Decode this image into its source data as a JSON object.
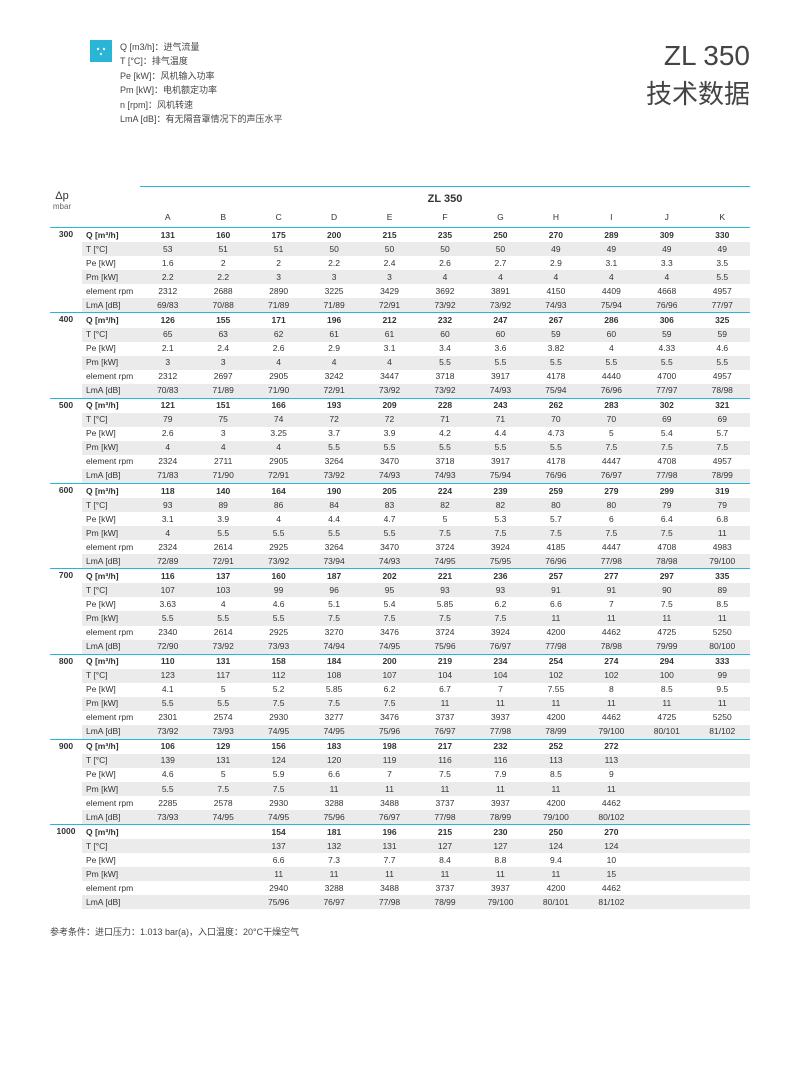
{
  "title_line1": "ZL 350",
  "title_line2": "技术数据",
  "legend": [
    "Q [m3/h]：进气流量",
    "T [°C]：排气温度",
    "Pe [kW]：风机输入功率",
    "Pm [kW]：电机额定功率",
    "n [rpm]：风机转速",
    "LmA [dB]：有无隔音罩情况下的声压水平"
  ],
  "corner": {
    "top": "Δp",
    "bottom": "mbar"
  },
  "model_header": "ZL 350",
  "col_letters": [
    "A",
    "B",
    "C",
    "D",
    "E",
    "F",
    "G",
    "H",
    "I",
    "J",
    "K"
  ],
  "param_labels": [
    "Q [m³/h]",
    "T [°C]",
    "Pe [kW]",
    "Pm [kW]",
    "element rpm",
    "LmA [dB]"
  ],
  "footnote": "参考条件：进口压力：1.013 bar(a)，入口温度：20°C干燥空气",
  "blocks": [
    {
      "mbar": "300",
      "rows": [
        [
          "131",
          "160",
          "175",
          "200",
          "215",
          "235",
          "250",
          "270",
          "289",
          "309",
          "330"
        ],
        [
          "53",
          "51",
          "51",
          "50",
          "50",
          "50",
          "50",
          "49",
          "49",
          "49",
          "49"
        ],
        [
          "1.6",
          "2",
          "2",
          "2.2",
          "2.4",
          "2.6",
          "2.7",
          "2.9",
          "3.1",
          "3.3",
          "3.5"
        ],
        [
          "2.2",
          "2.2",
          "3",
          "3",
          "3",
          "4",
          "4",
          "4",
          "4",
          "4",
          "5.5"
        ],
        [
          "2312",
          "2688",
          "2890",
          "3225",
          "3429",
          "3692",
          "3891",
          "4150",
          "4409",
          "4668",
          "4957"
        ],
        [
          "69/83",
          "70/88",
          "71/89",
          "71/89",
          "72/91",
          "73/92",
          "73/92",
          "74/93",
          "75/94",
          "76/96",
          "77/97"
        ]
      ]
    },
    {
      "mbar": "400",
      "rows": [
        [
          "126",
          "155",
          "171",
          "196",
          "212",
          "232",
          "247",
          "267",
          "286",
          "306",
          "325"
        ],
        [
          "65",
          "63",
          "62",
          "61",
          "61",
          "60",
          "60",
          "59",
          "60",
          "59",
          "59"
        ],
        [
          "2.1",
          "2.4",
          "2.6",
          "2.9",
          "3.1",
          "3.4",
          "3.6",
          "3.82",
          "4",
          "4.33",
          "4.6"
        ],
        [
          "3",
          "3",
          "4",
          "4",
          "4",
          "5.5",
          "5.5",
          "5.5",
          "5.5",
          "5.5",
          "5.5"
        ],
        [
          "2312",
          "2697",
          "2905",
          "3242",
          "3447",
          "3718",
          "3917",
          "4178",
          "4440",
          "4700",
          "4957"
        ],
        [
          "70/83",
          "71/89",
          "71/90",
          "72/91",
          "73/92",
          "73/92",
          "74/93",
          "75/94",
          "76/96",
          "77/97",
          "78/98"
        ]
      ]
    },
    {
      "mbar": "500",
      "rows": [
        [
          "121",
          "151",
          "166",
          "193",
          "209",
          "228",
          "243",
          "262",
          "283",
          "302",
          "321"
        ],
        [
          "79",
          "75",
          "74",
          "72",
          "72",
          "71",
          "71",
          "70",
          "70",
          "69",
          "69"
        ],
        [
          "2.6",
          "3",
          "3.25",
          "3.7",
          "3.9",
          "4.2",
          "4.4",
          "4.73",
          "5",
          "5.4",
          "5.7"
        ],
        [
          "4",
          "4",
          "4",
          "5.5",
          "5.5",
          "5.5",
          "5.5",
          "5.5",
          "7.5",
          "7.5",
          "7.5"
        ],
        [
          "2324",
          "2711",
          "2905",
          "3264",
          "3470",
          "3718",
          "3917",
          "4178",
          "4447",
          "4708",
          "4957"
        ],
        [
          "71/83",
          "71/90",
          "72/91",
          "73/92",
          "74/93",
          "74/93",
          "75/94",
          "76/96",
          "76/97",
          "77/98",
          "78/99"
        ]
      ]
    },
    {
      "mbar": "600",
      "rows": [
        [
          "118",
          "140",
          "164",
          "190",
          "205",
          "224",
          "239",
          "259",
          "279",
          "299",
          "319"
        ],
        [
          "93",
          "89",
          "86",
          "84",
          "83",
          "82",
          "82",
          "80",
          "80",
          "79",
          "79"
        ],
        [
          "3.1",
          "3.9",
          "4",
          "4.4",
          "4.7",
          "5",
          "5.3",
          "5.7",
          "6",
          "6.4",
          "6.8"
        ],
        [
          "4",
          "5.5",
          "5.5",
          "5.5",
          "5.5",
          "7.5",
          "7.5",
          "7.5",
          "7.5",
          "7.5",
          "11"
        ],
        [
          "2324",
          "2614",
          "2925",
          "3264",
          "3470",
          "3724",
          "3924",
          "4185",
          "4447",
          "4708",
          "4983"
        ],
        [
          "72/89",
          "72/91",
          "73/92",
          "73/94",
          "74/93",
          "74/95",
          "75/95",
          "76/96",
          "77/98",
          "78/98",
          "79/100"
        ]
      ]
    },
    {
      "mbar": "700",
      "rows": [
        [
          "116",
          "137",
          "160",
          "187",
          "202",
          "221",
          "236",
          "257",
          "277",
          "297",
          "335"
        ],
        [
          "107",
          "103",
          "99",
          "96",
          "95",
          "93",
          "93",
          "91",
          "91",
          "90",
          "89"
        ],
        [
          "3.63",
          "4",
          "4.6",
          "5.1",
          "5.4",
          "5.85",
          "6.2",
          "6.6",
          "7",
          "7.5",
          "8.5"
        ],
        [
          "5.5",
          "5.5",
          "5.5",
          "7.5",
          "7.5",
          "7.5",
          "7.5",
          "11",
          "11",
          "11",
          "11"
        ],
        [
          "2340",
          "2614",
          "2925",
          "3270",
          "3476",
          "3724",
          "3924",
          "4200",
          "4462",
          "4725",
          "5250"
        ],
        [
          "72/90",
          "73/92",
          "73/93",
          "74/94",
          "74/95",
          "75/96",
          "76/97",
          "77/98",
          "78/98",
          "79/99",
          "80/100"
        ]
      ]
    },
    {
      "mbar": "800",
      "rows": [
        [
          "110",
          "131",
          "158",
          "184",
          "200",
          "219",
          "234",
          "254",
          "274",
          "294",
          "333"
        ],
        [
          "123",
          "117",
          "112",
          "108",
          "107",
          "104",
          "104",
          "102",
          "102",
          "100",
          "99"
        ],
        [
          "4.1",
          "5",
          "5.2",
          "5.85",
          "6.2",
          "6.7",
          "7",
          "7.55",
          "8",
          "8.5",
          "9.5"
        ],
        [
          "5.5",
          "5.5",
          "7.5",
          "7.5",
          "7.5",
          "11",
          "11",
          "11",
          "11",
          "11",
          "11"
        ],
        [
          "2301",
          "2574",
          "2930",
          "3277",
          "3476",
          "3737",
          "3937",
          "4200",
          "4462",
          "4725",
          "5250"
        ],
        [
          "73/92",
          "73/93",
          "74/95",
          "74/95",
          "75/96",
          "76/97",
          "77/98",
          "78/99",
          "79/100",
          "80/101",
          "81/102"
        ]
      ]
    },
    {
      "mbar": "900",
      "rows": [
        [
          "106",
          "129",
          "156",
          "183",
          "198",
          "217",
          "232",
          "252",
          "272",
          "",
          ""
        ],
        [
          "139",
          "131",
          "124",
          "120",
          "119",
          "116",
          "116",
          "113",
          "113",
          "",
          ""
        ],
        [
          "4.6",
          "5",
          "5.9",
          "6.6",
          "7",
          "7.5",
          "7.9",
          "8.5",
          "9",
          "",
          ""
        ],
        [
          "5.5",
          "7.5",
          "7.5",
          "11",
          "11",
          "11",
          "11",
          "11",
          "11",
          "",
          ""
        ],
        [
          "2285",
          "2578",
          "2930",
          "3288",
          "3488",
          "3737",
          "3937",
          "4200",
          "4462",
          "",
          ""
        ],
        [
          "73/93",
          "74/95",
          "74/95",
          "75/96",
          "76/97",
          "77/98",
          "78/99",
          "79/100",
          "80/102",
          "",
          ""
        ]
      ]
    },
    {
      "mbar": "1000",
      "rows": [
        [
          "",
          "",
          "154",
          "181",
          "196",
          "215",
          "230",
          "250",
          "270",
          "",
          ""
        ],
        [
          "",
          "",
          "137",
          "132",
          "131",
          "127",
          "127",
          "124",
          "124",
          "",
          ""
        ],
        [
          "",
          "",
          "6.6",
          "7.3",
          "7.7",
          "8.4",
          "8.8",
          "9.4",
          "10",
          "",
          ""
        ],
        [
          "",
          "",
          "11",
          "11",
          "11",
          "11",
          "11",
          "11",
          "15",
          "",
          ""
        ],
        [
          "",
          "",
          "2940",
          "3288",
          "3488",
          "3737",
          "3937",
          "4200",
          "4462",
          "",
          ""
        ],
        [
          "",
          "",
          "75/96",
          "76/97",
          "77/98",
          "78/99",
          "79/100",
          "80/101",
          "81/102",
          "",
          ""
        ]
      ]
    }
  ],
  "stripe_bg": "#ebebeb",
  "accent": "#29b6d6"
}
